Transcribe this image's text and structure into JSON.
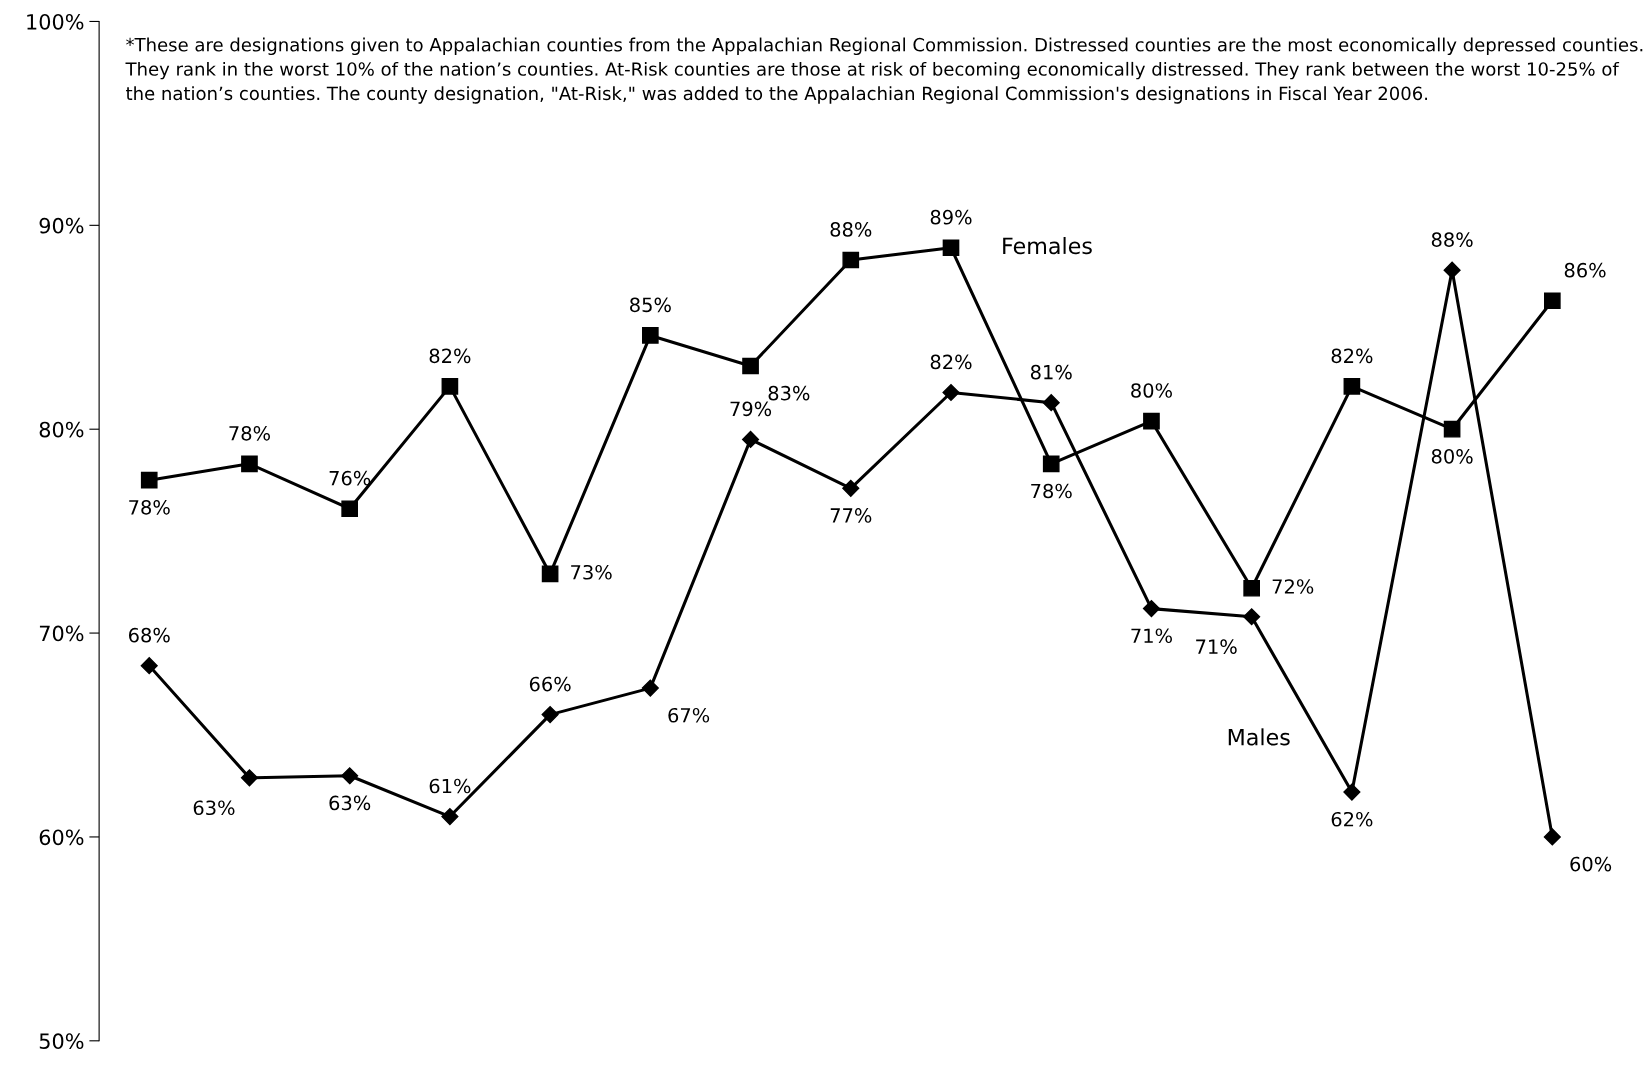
{
  "chart_data": {
    "type": "line",
    "categories": [
      null,
      null,
      null,
      null,
      null,
      null,
      null,
      null,
      null,
      null,
      null,
      null,
      null,
      null,
      null
    ],
    "series": [
      {
        "name": "Females",
        "color": "#000000",
        "marker": "square",
        "values": [
          77.5,
          78.3,
          76.1,
          82.1,
          72.9,
          84.6,
          83.1,
          88.3,
          88.9,
          78.3,
          80.4,
          72.2,
          82.1,
          80.0,
          86.3
        ],
        "value_labels": [
          "78%",
          "78%",
          "76%",
          "82%",
          "73%",
          "85%",
          "83%",
          "88%",
          "89%",
          "78%",
          "80%",
          "72%",
          "82%",
          "80%",
          "86%"
        ]
      },
      {
        "name": "Males",
        "color": "#000000",
        "marker": "diamond",
        "values": [
          68.4,
          62.9,
          63.0,
          61.0,
          66.0,
          67.3,
          79.5,
          77.1,
          81.8,
          81.3,
          71.2,
          70.8,
          62.2,
          87.8,
          60.0
        ],
        "value_labels": [
          "68%",
          "63%",
          "63%",
          "61%",
          "66%",
          "67%",
          "79%",
          "77%",
          "82%",
          "81%",
          "71%",
          "71%",
          "62%",
          "88%",
          "60%"
        ]
      }
    ],
    "ylim": [
      50,
      100
    ],
    "yticks": [
      {
        "value": 50,
        "label": "50%"
      },
      {
        "value": 60,
        "label": "60%"
      },
      {
        "value": 70,
        "label": "70%"
      },
      {
        "value": 80,
        "label": "80%"
      },
      {
        "value": 90,
        "label": "90%"
      },
      {
        "value": 100,
        "label": "100%"
      }
    ],
    "tick_labels": "y",
    "grid": false,
    "legend": false,
    "line_style": "solid",
    "annotations": [
      "*These are designations given to Appalachian counties from the Appalachian Regional Commission. Distressed counties are the most economically depressed counties. They rank in the worst 10% of the nation’s counties. At-Risk counties are those at risk of becoming economically distressed. They rank between the worst 10-25% of the nation’s counties. The county designation, \"At-Risk,\" was added to the Appalachian Regional Commission's designations in Fiscal Year 2006."
    ]
  }
}
